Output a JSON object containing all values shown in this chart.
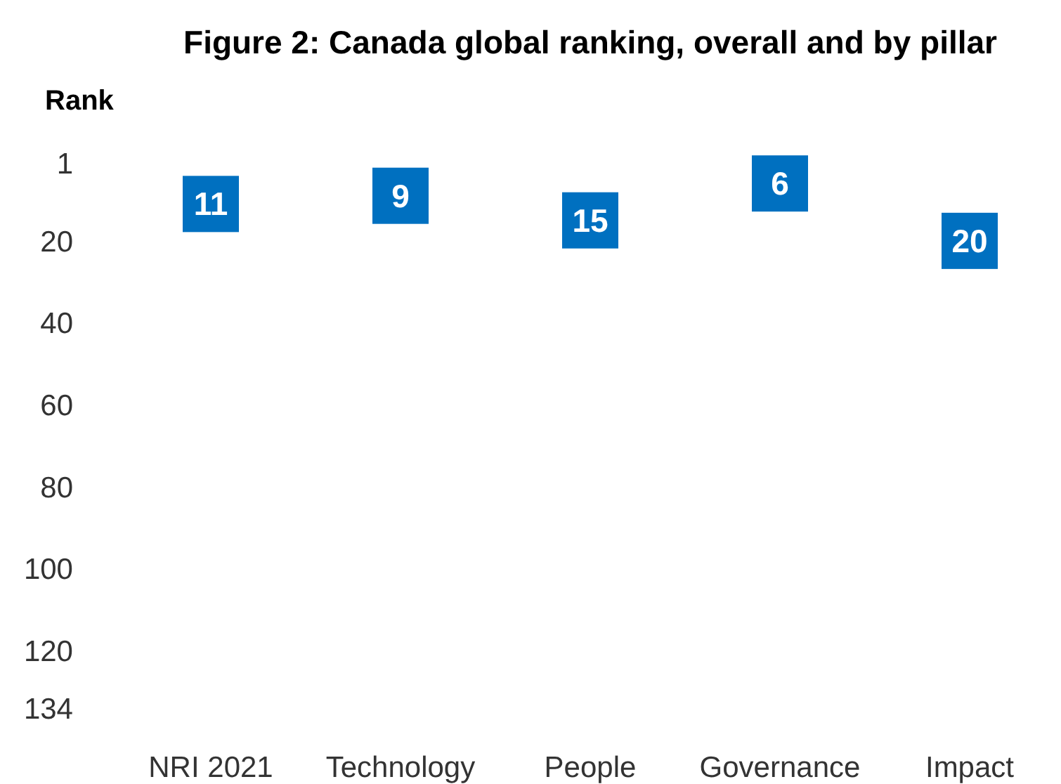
{
  "chart_data": {
    "type": "scatter",
    "title": "Figure 2: Canada global ranking, overall and by pillar",
    "ylabel": "Rank",
    "categories": [
      "NRI 2021",
      "Technology",
      "People",
      "Governance",
      "Impact"
    ],
    "values": [
      11,
      9,
      15,
      6,
      20
    ],
    "color": "#0070c0",
    "marker": "square",
    "data_labels": true,
    "ylim": [
      134,
      1
    ],
    "yticks": [
      1,
      20,
      40,
      60,
      80,
      100,
      120,
      134
    ],
    "grid": false
  }
}
